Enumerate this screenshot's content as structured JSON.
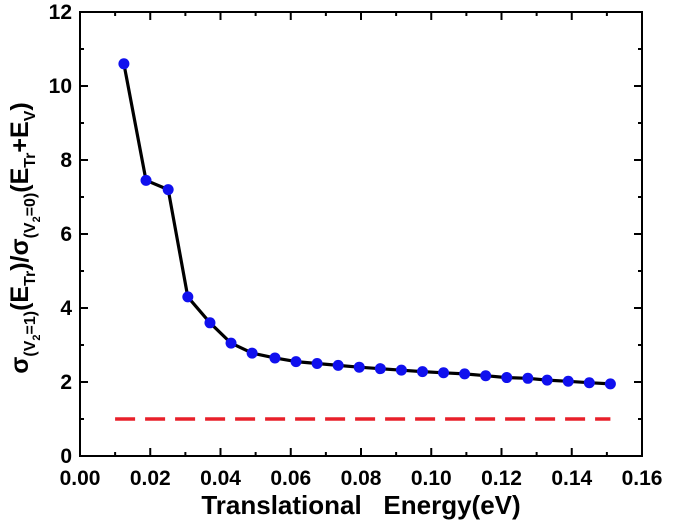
{
  "chart_data": {
    "type": "line",
    "title": "",
    "xlabel": "Translational   Energy(eV)",
    "ylabel": {
      "parts": [
        {
          "t": "σ",
          "sub": false
        },
        {
          "t": "(V",
          "sub": true
        },
        {
          "t": "2",
          "subsub": true
        },
        {
          "t": "=1)",
          "sub": true
        },
        {
          "t": "(E",
          "sub": false
        },
        {
          "t": "Tr",
          "sub": true
        },
        {
          "t": ")/σ",
          "sub": false
        },
        {
          "t": "(V",
          "sub": true
        },
        {
          "t": "2",
          "subsub": true
        },
        {
          "t": "=0)",
          "sub": true
        },
        {
          "t": "(E",
          "sub": false
        },
        {
          "t": "Tr",
          "sub": true
        },
        {
          "t": "+E",
          "sub": false
        },
        {
          "t": "V",
          "sub": true
        },
        {
          "t": ")",
          "sub": false
        }
      ]
    },
    "xlim": [
      0.0,
      0.16
    ],
    "ylim": [
      0,
      12
    ],
    "x_ticks": [
      0.0,
      0.02,
      0.04,
      0.06,
      0.08,
      0.1,
      0.12,
      0.14,
      0.16
    ],
    "x_tick_labels": [
      "0.00",
      "0.02",
      "0.04",
      "0.06",
      "0.08",
      "0.10",
      "0.12",
      "0.14",
      "0.16"
    ],
    "y_ticks": [
      0,
      2,
      4,
      6,
      8,
      10,
      12
    ],
    "y_tick_labels": [
      "0",
      "2",
      "4",
      "6",
      "8",
      "10",
      "12"
    ],
    "grid": false,
    "legend": "none",
    "series": [
      {
        "style": "line+markers",
        "line_color": "#000000",
        "marker_color": "#1010ee",
        "x": [
          0.0125,
          0.0188,
          0.0251,
          0.0307,
          0.037,
          0.043,
          0.049,
          0.0555,
          0.0615,
          0.0675,
          0.0735,
          0.0795,
          0.0855,
          0.0915,
          0.0975,
          0.1035,
          0.1095,
          0.1155,
          0.1215,
          0.1275,
          0.133,
          0.139,
          0.145,
          0.151
        ],
        "y": [
          10.6,
          7.45,
          7.2,
          4.3,
          3.6,
          3.05,
          2.78,
          2.65,
          2.55,
          2.5,
          2.45,
          2.4,
          2.36,
          2.32,
          2.28,
          2.25,
          2.22,
          2.17,
          2.12,
          2.1,
          2.05,
          2.02,
          1.98,
          1.95
        ]
      },
      {
        "style": "dashed",
        "line_color": "#e8202a",
        "x": [
          0.01,
          0.151
        ],
        "y": [
          1.0,
          1.0
        ]
      }
    ]
  }
}
